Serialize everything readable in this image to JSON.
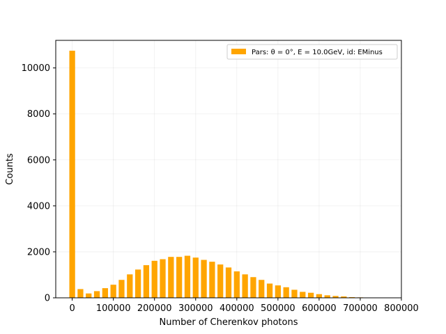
{
  "chart_data": {
    "type": "bar",
    "title": "",
    "xlabel": "Number of Cherenkov photons",
    "ylabel": "Counts",
    "xlim": [
      -40000,
      800000
    ],
    "ylim": [
      0,
      11200
    ],
    "xticks": [
      0,
      100000,
      200000,
      300000,
      400000,
      500000,
      600000,
      700000,
      800000
    ],
    "xtick_labels": [
      "0",
      "100000",
      "200000",
      "300000",
      "400000",
      "500000",
      "600000",
      "700000",
      "800000"
    ],
    "yticks": [
      0,
      2000,
      4000,
      6000,
      8000,
      10000
    ],
    "ytick_labels": [
      "0",
      "2000",
      "4000",
      "6000",
      "8000",
      "10000"
    ],
    "grid": true,
    "legend_position": "top-right",
    "color": "#ffa500",
    "series": [
      {
        "name": "Pars: θ = 0°, E = 10.0GeV, id: EMinus",
        "bar_width": 14000,
        "x": [
          0,
          20000,
          40000,
          60000,
          80000,
          100000,
          120000,
          140000,
          160000,
          180000,
          200000,
          220000,
          240000,
          260000,
          280000,
          300000,
          320000,
          340000,
          360000,
          380000,
          400000,
          420000,
          440000,
          460000,
          480000,
          500000,
          520000,
          540000,
          560000,
          580000,
          600000,
          620000,
          640000,
          660000,
          680000,
          700000,
          720000,
          740000
        ],
        "values": [
          10750,
          380,
          190,
          290,
          420,
          570,
          780,
          1020,
          1230,
          1420,
          1610,
          1680,
          1780,
          1780,
          1830,
          1750,
          1650,
          1570,
          1450,
          1320,
          1150,
          1020,
          900,
          780,
          620,
          540,
          460,
          350,
          260,
          220,
          160,
          110,
          80,
          60,
          30,
          20,
          15,
          10
        ]
      }
    ]
  }
}
